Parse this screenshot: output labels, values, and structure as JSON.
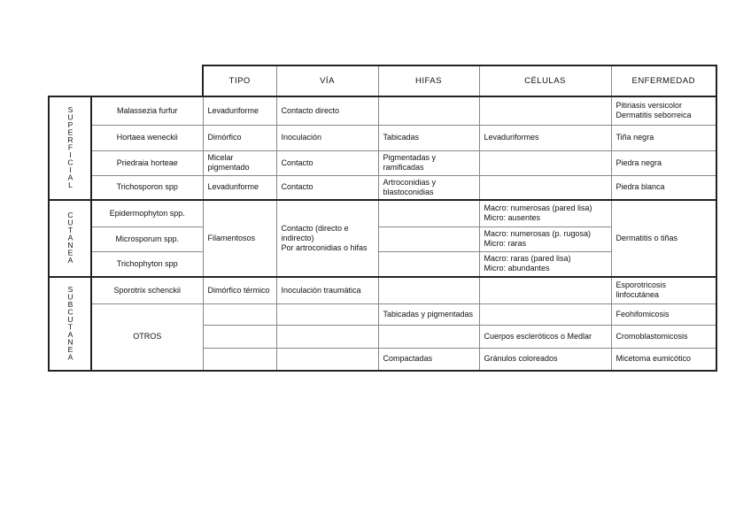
{
  "headers": {
    "tipo": "TIPO",
    "via": "VÍA",
    "hifas": "HIFAS",
    "celulas": "CÉLULAS",
    "enfermedad": "ENFERMEDAD"
  },
  "groups": {
    "superficial": {
      "label": "SUPERFICIAL",
      "rows": [
        {
          "name": "Malassezia furfur",
          "tipo": "Levaduriforme",
          "via": "Contacto directo",
          "hifas": "",
          "celulas": "",
          "enfermedad": "Pitiriasis versicolor\nDermatitis seborreica"
        },
        {
          "name": "Hortaea weneckii",
          "tipo": "Dimórfico",
          "via": "Inoculación",
          "hifas": "Tabicadas",
          "celulas": "Levaduriformes",
          "enfermedad": "Tiña negra"
        },
        {
          "name": "Priedraia horteae",
          "tipo": "Micelar pigmentado",
          "via": "Contacto",
          "hifas": "Pigmentadas y ramificadas",
          "celulas": "",
          "enfermedad": "Piedra negra"
        },
        {
          "name": "Trichosporon spp",
          "tipo": "Levaduriforme",
          "via": "Contacto",
          "hifas": "Artroconidias y blastoconidias",
          "celulas": "",
          "enfermedad": "Piedra blanca"
        }
      ]
    },
    "cutanea": {
      "label": "CUTANEA",
      "tipo": "Filamentosos",
      "via": "Contacto (directo e indirecto)\nPor artroconidias o hifas",
      "enfermedad": "Dermatitis o tiñas",
      "rows": [
        {
          "name": "Epidermophyton spp.",
          "hifas": "",
          "celulas": "Macro: numerosas (pared lisa)\nMicro: ausentes"
        },
        {
          "name": "Microsporum spp.",
          "hifas": "",
          "celulas": "Macro: numerosas (p. rugosa)\nMicro: raras"
        },
        {
          "name": "Trichophyton spp",
          "hifas": "",
          "celulas": "Macro: raras (pared lisa)\nMicro: abundantes"
        }
      ]
    },
    "subcutanea": {
      "label": "SUBCUTANEA",
      "first": {
        "name": "Sporotrix schenckii",
        "tipo": "Dimórfico térmico",
        "via": "Inoculación traumática",
        "hifas": "",
        "celulas": "",
        "enfermedad": "Esporotricosis linfocutánea"
      },
      "otros_label": "OTROS",
      "otros": [
        {
          "tipo": "",
          "via": "",
          "hifas": "Tabicadas y pigmentadas",
          "celulas": "",
          "enfermedad": "Feohifomicosis"
        },
        {
          "tipo": "",
          "via": "",
          "hifas": "",
          "celulas": "Cuerpos escleróticos o Medlar",
          "enfermedad": "Cromoblastomicosis"
        },
        {
          "tipo": "",
          "via": "",
          "hifas": "Compactadas",
          "celulas": "Gránulos coloreados",
          "enfermedad": "Micetoma eumicótico"
        }
      ]
    }
  }
}
